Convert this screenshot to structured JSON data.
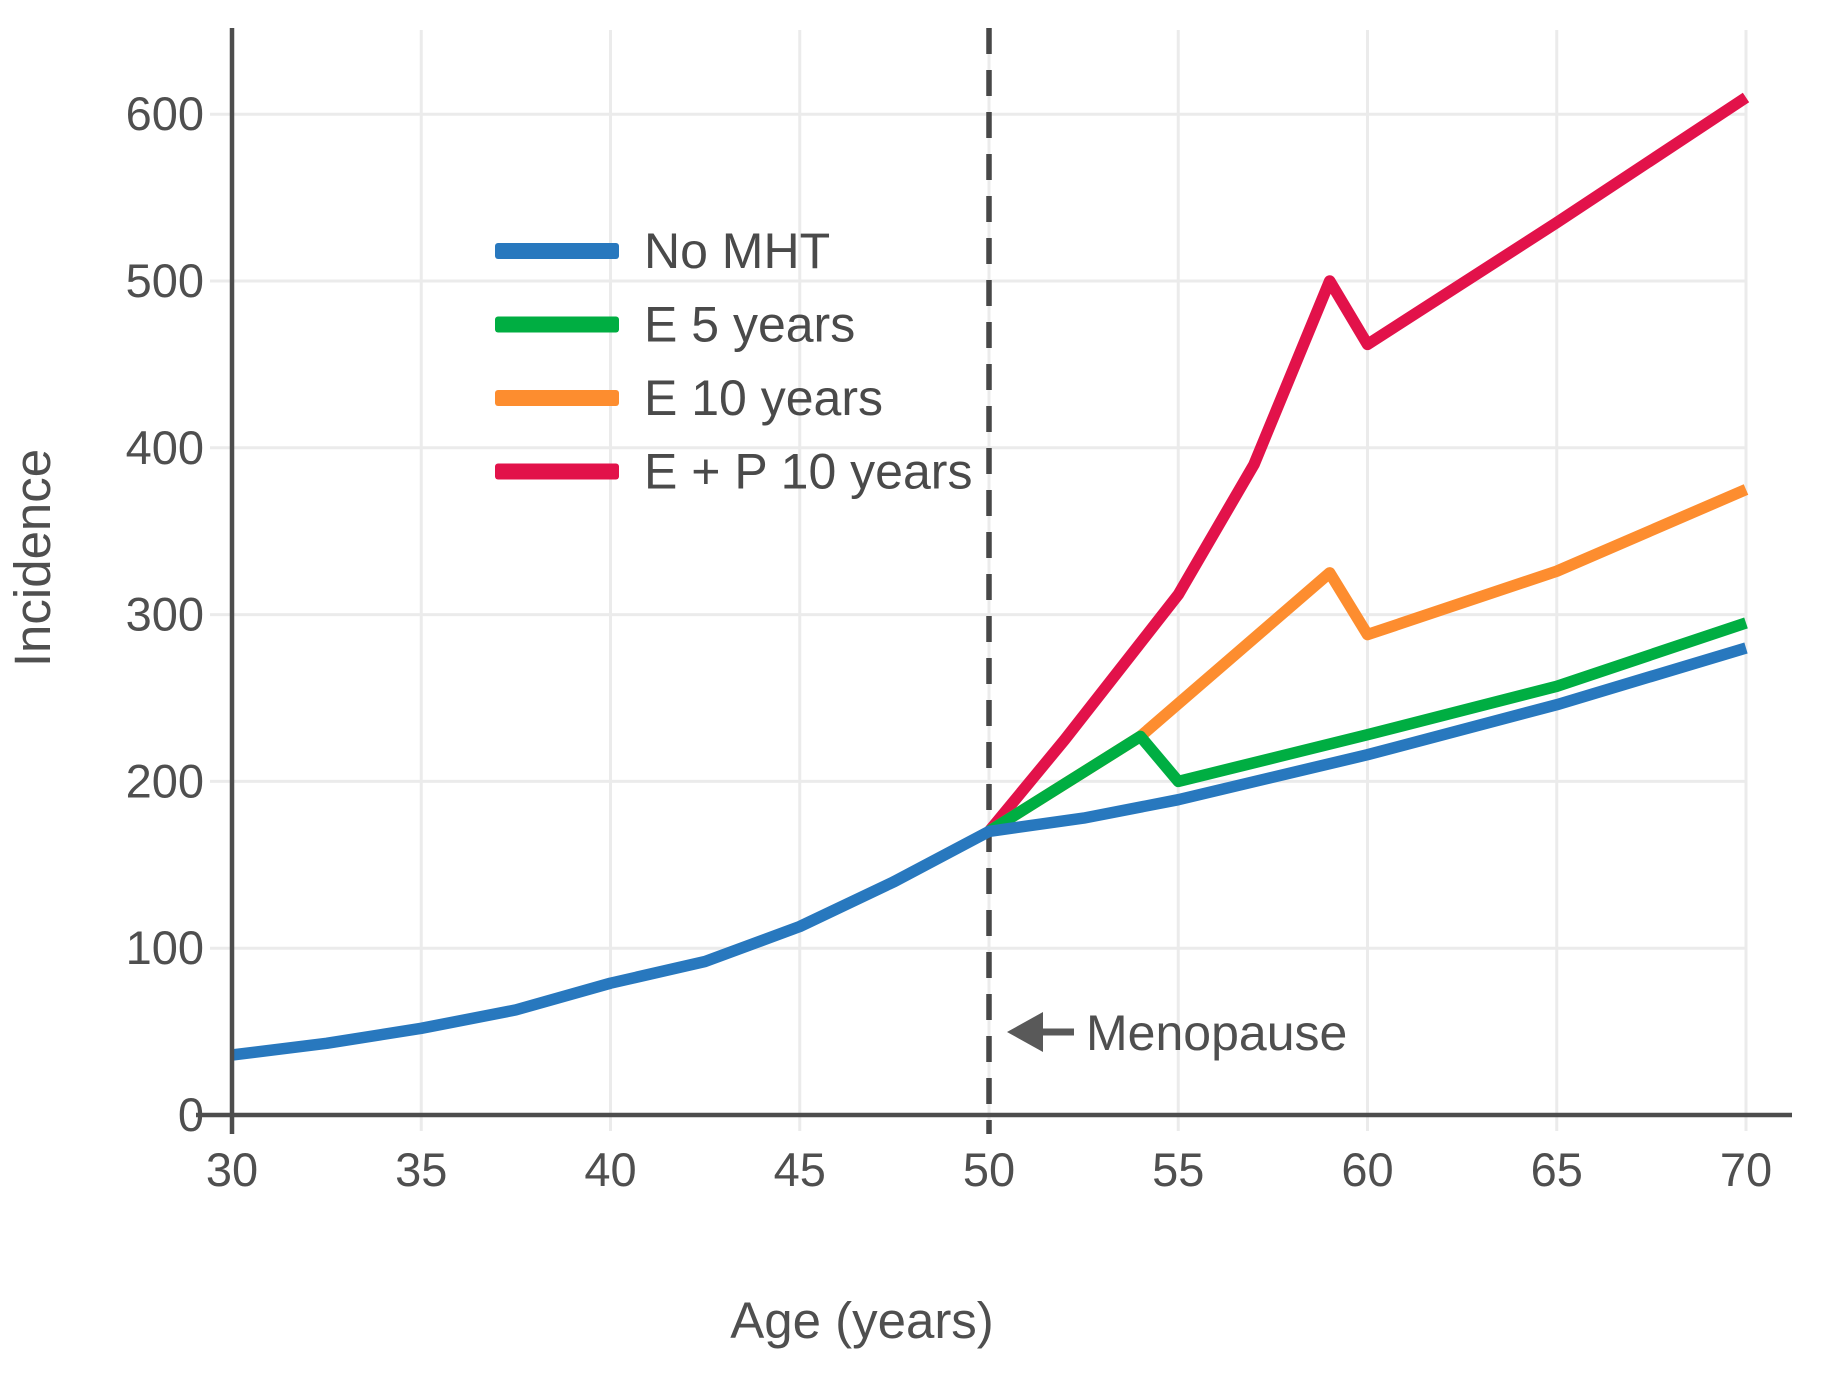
{
  "page": {
    "background": "#ffffff"
  },
  "chart_data": {
    "type": "line",
    "title": "",
    "xlabel": "Age (years)",
    "ylabel": "Incidence",
    "xlim": [
      30,
      70
    ],
    "ylim": [
      0,
      650
    ],
    "x_ticks": [
      30,
      35,
      40,
      45,
      50,
      55,
      60,
      65,
      70
    ],
    "y_ticks": [
      0,
      100,
      200,
      300,
      400,
      500,
      600
    ],
    "grid": true,
    "legend_position": "upper left inside plot",
    "series": [
      {
        "name": "No MHT",
        "color": "#2878BE",
        "points": [
          [
            30,
            36
          ],
          [
            32.5,
            43
          ],
          [
            35,
            52
          ],
          [
            37.5,
            63
          ],
          [
            40,
            79
          ],
          [
            42.5,
            92
          ],
          [
            45,
            113
          ],
          [
            47.5,
            140
          ],
          [
            50,
            170
          ],
          [
            52.5,
            178
          ],
          [
            55,
            189
          ],
          [
            60,
            216
          ],
          [
            65,
            246
          ],
          [
            70,
            280
          ]
        ]
      },
      {
        "name": "E 5 years",
        "color": "#00AE42",
        "points": [
          [
            50,
            170
          ],
          [
            54,
            227
          ],
          [
            55,
            200
          ],
          [
            60,
            228
          ],
          [
            65,
            257
          ],
          [
            70,
            295
          ]
        ]
      },
      {
        "name": "E 10 years",
        "color": "#FD8D2F",
        "points": [
          [
            50,
            170
          ],
          [
            54,
            227
          ],
          [
            59,
            325
          ],
          [
            60,
            288
          ],
          [
            65,
            326
          ],
          [
            70,
            375
          ]
        ]
      },
      {
        "name": "E + P 10 years",
        "color": "#E2124A",
        "points": [
          [
            50,
            170
          ],
          [
            52,
            225
          ],
          [
            55,
            312
          ],
          [
            57,
            390
          ],
          [
            59,
            500
          ],
          [
            60,
            462
          ],
          [
            65,
            535
          ],
          [
            70,
            610
          ]
        ]
      }
    ],
    "vline": {
      "x": 50,
      "style": "dashed",
      "color": "#474747"
    },
    "annotation": {
      "text": "Menopause",
      "arrow": "left-arrow",
      "points_to_x": 50
    },
    "style": {
      "grid_color": "#ebebeb",
      "spine_color": "#4d4d4d",
      "text_color": "#4f4f4f",
      "annotation_color": "#595959"
    }
  }
}
